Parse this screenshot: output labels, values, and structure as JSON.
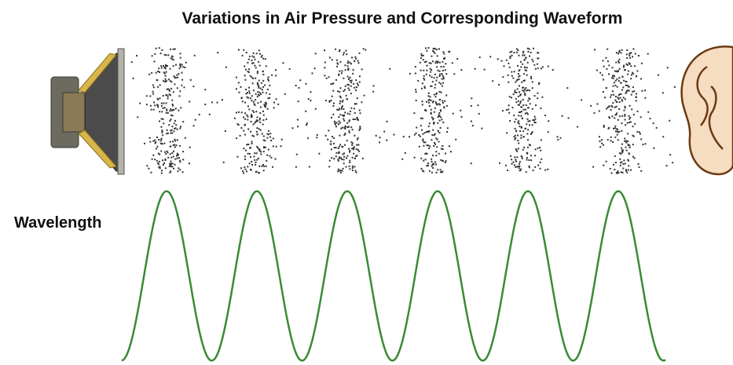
{
  "title": "Variations in Air Pressure and Corresponding Waveform",
  "label": "Wavelength"
}
